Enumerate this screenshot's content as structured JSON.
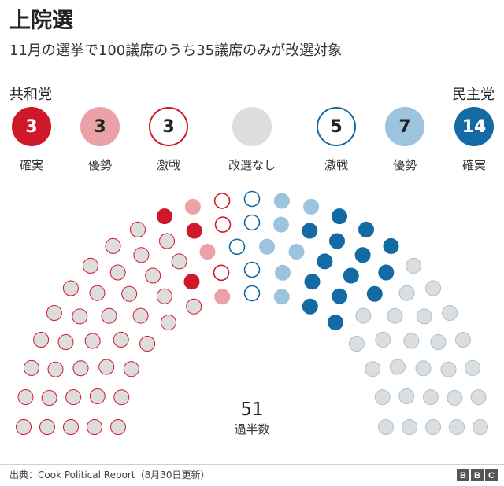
{
  "title": "上院選",
  "subtitle": "11月の選挙で100議席のうち35議席のみが改選対象",
  "parties": {
    "left": "共和党",
    "right": "民主党"
  },
  "colors": {
    "rep_solid": "#d0182b",
    "rep_likely": "#eba2a6",
    "rep_toss": "#d0182b",
    "not_up": "#dddddd",
    "not_up_border": "#c8c8c8",
    "dem_toss": "#136aa5",
    "dem_likely": "#9ec3de",
    "dem_solid": "#136aa5"
  },
  "categories": [
    {
      "key": "rep_solid",
      "count": "3",
      "label": "確実"
    },
    {
      "key": "rep_likely",
      "count": "3",
      "label": "優勢"
    },
    {
      "key": "rep_toss",
      "count": "3",
      "label": "激戦"
    },
    {
      "key": "not_up",
      "count": "",
      "label": "改選なし"
    },
    {
      "key": "dem_toss",
      "count": "5",
      "label": "激戦"
    },
    {
      "key": "dem_likely",
      "count": "7",
      "label": "優勢"
    },
    {
      "key": "dem_solid",
      "count": "14",
      "label": "確実"
    }
  ],
  "chart_data": {
    "type": "parliament",
    "total_seats": 100,
    "seats": [
      {
        "group": "rep_not_up",
        "count": 38
      },
      {
        "group": "rep_solid",
        "count": 3
      },
      {
        "group": "rep_likely",
        "count": 3
      },
      {
        "group": "rep_toss",
        "count": 3
      },
      {
        "group": "dem_toss",
        "count": 5
      },
      {
        "group": "dem_likely",
        "count": 7
      },
      {
        "group": "dem_solid",
        "count": 14
      },
      {
        "group": "dem_not_up",
        "count": 27
      }
    ],
    "majority": {
      "value": "51",
      "label": "過半数"
    }
  },
  "source": "出典：Cook Political Report（8月30日更新）",
  "logo": [
    "B",
    "B",
    "C"
  ]
}
